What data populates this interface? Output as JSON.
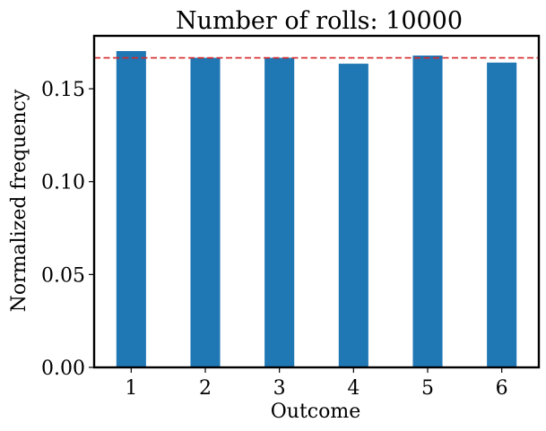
{
  "chart_data": {
    "type": "bar",
    "title": "Number of rolls: 10000",
    "xlabel": "Outcome",
    "ylabel": "Normalized frequency",
    "categories": [
      "1",
      "2",
      "3",
      "4",
      "5",
      "6"
    ],
    "values": [
      0.1703,
      0.1667,
      0.1667,
      0.1635,
      0.1679,
      0.1641
    ],
    "ylim": [
      0,
      0.1785
    ],
    "yticks": [
      0.0,
      0.05,
      0.1,
      0.15
    ],
    "ytick_labels": [
      "0.00",
      "0.05",
      "0.10",
      "0.15"
    ],
    "reference_line": {
      "value": 0.16667,
      "style": "dashed",
      "color": "#d62728"
    },
    "bar_color": "#1f77b4",
    "grid": false,
    "legend": "none"
  }
}
